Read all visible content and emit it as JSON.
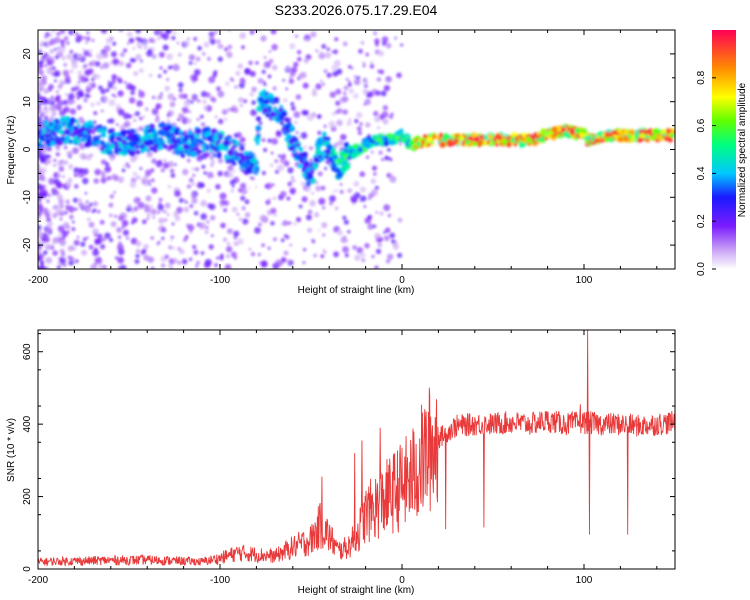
{
  "figure": {
    "title": "S233.2026.075.17.29.E04"
  },
  "chart_data": [
    {
      "type": "heatmap",
      "title": "S233.2026.075.17.29.E04",
      "xlabel": "Height of straight line (km)",
      "ylabel": "Frequency (Hz)",
      "xlim": [
        -200,
        150
      ],
      "ylim": [
        -25,
        25
      ],
      "xticks": [
        -200,
        -100,
        0,
        100
      ],
      "yticks": [
        -20,
        -10,
        0,
        10,
        20
      ],
      "colorbar": {
        "label": "Normalized spectral amplitude",
        "range": [
          0.0,
          1.0
        ],
        "ticks": [
          0.0,
          0.2,
          0.4,
          0.6,
          0.8
        ]
      },
      "ridge": [
        [
          -200,
          3
        ],
        [
          -185,
          4
        ],
        [
          -170,
          3
        ],
        [
          -155,
          1
        ],
        [
          -140,
          2
        ],
        [
          -130,
          3
        ],
        [
          -120,
          1
        ],
        [
          -110,
          2
        ],
        [
          -100,
          1
        ],
        [
          -95,
          0
        ],
        [
          -90,
          -1
        ],
        [
          -85,
          -3
        ],
        [
          -80,
          -4
        ],
        [
          -78,
          11
        ],
        [
          -72,
          9
        ],
        [
          -66,
          7
        ],
        [
          -62,
          3
        ],
        [
          -58,
          0
        ],
        [
          -54,
          -3
        ],
        [
          -50,
          -6
        ],
        [
          -46,
          0
        ],
        [
          -42,
          1
        ],
        [
          -38,
          -2
        ],
        [
          -34,
          -4
        ],
        [
          -30,
          -1
        ],
        [
          -25,
          0
        ],
        [
          -20,
          1
        ],
        [
          -15,
          2
        ],
        [
          -10,
          2
        ],
        [
          -5,
          2
        ],
        [
          0,
          3
        ],
        [
          5,
          1
        ],
        [
          15,
          2
        ],
        [
          30,
          2
        ],
        [
          50,
          2
        ],
        [
          70,
          2
        ],
        [
          80,
          3
        ],
        [
          90,
          4
        ],
        [
          100,
          3
        ],
        [
          102,
          2
        ],
        [
          115,
          3
        ],
        [
          130,
          3
        ],
        [
          150,
          3
        ]
      ]
    },
    {
      "type": "line",
      "xlabel": "Height of straight line (km)",
      "ylabel": "SNR (10 * v/v)",
      "xlim": [
        -200,
        150
      ],
      "ylim": [
        0,
        660
      ],
      "xticks": [
        -200,
        -100,
        0,
        100
      ],
      "yticks": [
        0,
        200,
        400,
        600
      ],
      "series": [
        {
          "name": "SNR",
          "color": "#e83a3a",
          "x": [
            -200,
            -180,
            -160,
            -140,
            -120,
            -110,
            -100,
            -90,
            -80,
            -70,
            -60,
            -50,
            -45,
            -40,
            -35,
            -30,
            -25,
            -20,
            -15,
            -10,
            -5,
            0,
            5,
            10,
            15,
            20,
            25,
            30,
            40,
            50,
            60,
            70,
            80,
            90,
            100,
            110,
            120,
            130,
            140,
            150
          ],
          "y": [
            20,
            22,
            24,
            25,
            22,
            20,
            30,
            45,
            40,
            35,
            60,
            80,
            120,
            90,
            50,
            60,
            90,
            150,
            170,
            190,
            210,
            230,
            250,
            290,
            330,
            360,
            380,
            395,
            400,
            400,
            405,
            400,
            410,
            400,
            405,
            400,
            400,
            395,
            400,
            405
          ]
        }
      ],
      "spikes": [
        {
          "x": -44,
          "y": 255
        },
        {
          "x": -26,
          "y": 320
        },
        {
          "x": -22,
          "y": 355
        },
        {
          "x": -12,
          "y": 390
        },
        {
          "x": 24,
          "y": 110
        },
        {
          "x": 45,
          "y": 115
        },
        {
          "x": 98,
          "y": 455
        },
        {
          "x": 102,
          "y": 660
        },
        {
          "x": 103,
          "y": 95
        },
        {
          "x": 124,
          "y": 95
        }
      ]
    }
  ]
}
